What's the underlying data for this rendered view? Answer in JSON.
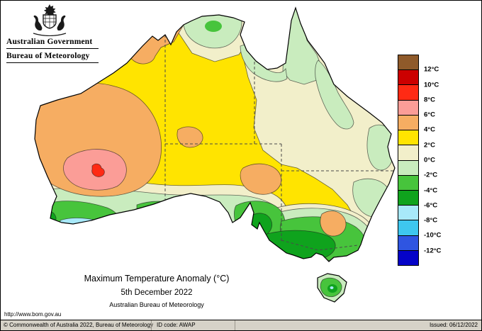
{
  "header": {
    "government_label": "Australian Government",
    "bureau_label": "Bureau of Meteorology"
  },
  "titles": {
    "main": "Maximum Temperature Anomaly (°C)",
    "date": "5th December 2022",
    "org": "Australian Bureau of Meteorology"
  },
  "legend": {
    "cells": [
      "brown",
      "dark_red",
      "red",
      "salmon",
      "orange",
      "yellow",
      "cream",
      "pale_green",
      "green",
      "dark_green",
      "pale_blue",
      "cyan",
      "blue",
      "dark_blue"
    ],
    "labels": [
      "12°C",
      "10°C",
      "8°C",
      "6°C",
      "4°C",
      "2°C",
      "0°C",
      "-2°C",
      "-4°C",
      "-6°C",
      "-8°C",
      "-10°C",
      "-12°C"
    ]
  },
  "palette": {
    "brown": "#8f5a2a",
    "dark_red": "#cc0000",
    "red": "#ff2a14",
    "salmon": "#fb9d97",
    "orange": "#f6ad62",
    "yellow": "#ffe400",
    "cream": "#f2efca",
    "pale_green": "#c9ecbe",
    "green": "#47c43c",
    "dark_green": "#0fa31d",
    "pale_blue": "#a8e9f9",
    "cyan": "#3ec7ef",
    "blue": "#2f55e1",
    "dark_blue": "#0503c8"
  },
  "map_data": {
    "type": "temperature-anomaly-choropleth",
    "region": "Australia",
    "unit": "°C",
    "regions": [
      {
        "area": "central-west Western Australia",
        "band": "6 to 8"
      },
      {
        "area": "small core central-west WA",
        "band": "8 to 10"
      },
      {
        "area": "WA interior and Pilbara coast",
        "band": "4 to 6"
      },
      {
        "area": "Victoria River / Top End west patches",
        "band": "4 to 6"
      },
      {
        "area": "northern South Australia patch",
        "band": "4 to 6"
      },
      {
        "area": "inland NSW east-coast patch",
        "band": "4 to 6"
      },
      {
        "area": "most of interior, north and west",
        "band": "2 to 4"
      },
      {
        "area": "eastern Queensland and coastal NSW",
        "band": "0 to 2"
      },
      {
        "area": "Top End, Cape York, NE QLD coast",
        "band": "-2 to 0"
      },
      {
        "area": "southern coastal WA, SA gulfs, Victoria",
        "band": "-4 to -2"
      },
      {
        "area": "Adelaide area, SE SA and southern Victoria",
        "band": "-6 to -4"
      },
      {
        "area": "SW WA coast spot and western Victoria spot",
        "band": "-8 to -6"
      },
      {
        "area": "Tasmania",
        "band": "-2 to 0, -4 to -2 interior"
      }
    ]
  },
  "footer": {
    "url": "http://www.bom.gov.au",
    "copyright": "© Commonwealth of Australia 2022, Bureau of Meteorology",
    "id_code": "ID code: AWAP",
    "issued": "Issued: 06/12/2022"
  }
}
